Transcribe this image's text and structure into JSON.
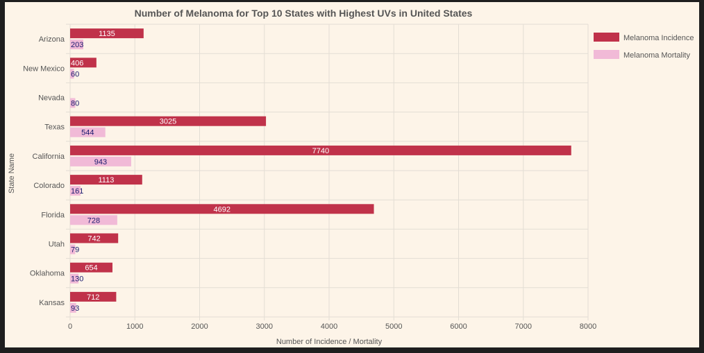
{
  "chart_data": {
    "type": "bar",
    "orientation": "horizontal",
    "title": "Number of Melanoma for Top 10 States with Highest UVs in United States",
    "xlabel": "Number of Incidence / Mortality",
    "ylabel": "State Name",
    "categories": [
      "Arizona",
      "New Mexico",
      "Nevada",
      "Texas",
      "California",
      "Colorado",
      "Florida",
      "Utah",
      "Oklahoma",
      "Kansas"
    ],
    "series": [
      {
        "name": "Melanoma Incidence",
        "color": "#c0324a",
        "values": [
          1135,
          406,
          null,
          3025,
          7740,
          1113,
          4692,
          742,
          654,
          712
        ]
      },
      {
        "name": "Melanoma Mortality",
        "color": "#f1bad7",
        "values": [
          203,
          60,
          80,
          544,
          943,
          161,
          728,
          79,
          130,
          93
        ]
      }
    ],
    "xlim": [
      0,
      8000
    ],
    "xticks": [
      0,
      1000,
      2000,
      3000,
      4000,
      5000,
      6000,
      7000,
      8000
    ],
    "grid": true,
    "legend_position": "top-right",
    "colors": {
      "background": "#fdf4e8",
      "grid": "#e3ddd4",
      "text": "#555555",
      "mortality_label": "#1a1a6e",
      "incidence_label": "#ffffff"
    }
  }
}
